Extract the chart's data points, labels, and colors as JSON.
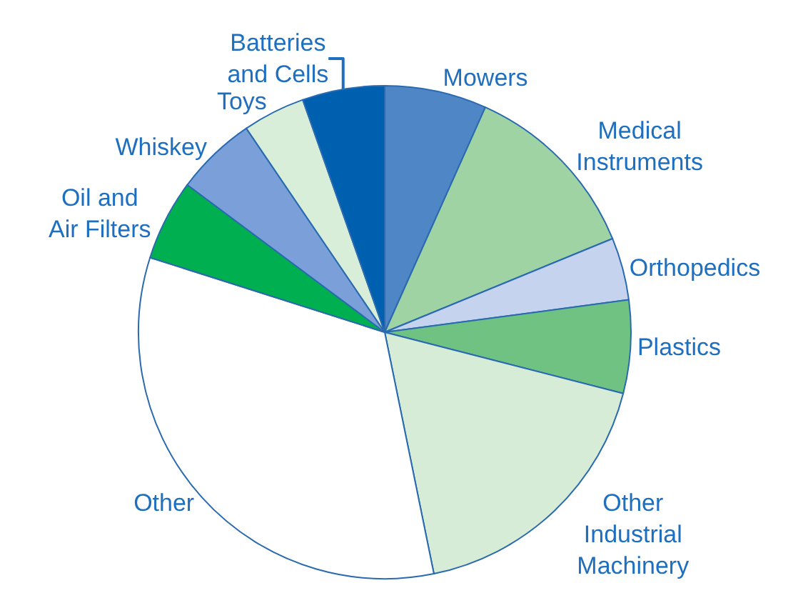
{
  "chart_data": {
    "type": "pie",
    "categories": [
      "Mowers",
      "Medical\nInstruments",
      "Orthopedics",
      "Plastics",
      "Other\nIndustrial\nMachinery",
      "Other",
      "Oil and\nAir Filters",
      "Whiskey",
      "Toys",
      "Batteries\nand Cells"
    ],
    "values": [
      6.7,
      12.1,
      4.1,
      6.1,
      17.8,
      33.1,
      5.3,
      5.3,
      4.1,
      5.4
    ],
    "colors": [
      "#4f86c6",
      "#9fd3a4",
      "#c5d3ee",
      "#70c283",
      "#d6ecd6",
      "#ffffff",
      "#00b050",
      "#7b9fd8",
      "#d8eed8",
      "#0060b0"
    ],
    "legend": false
  }
}
